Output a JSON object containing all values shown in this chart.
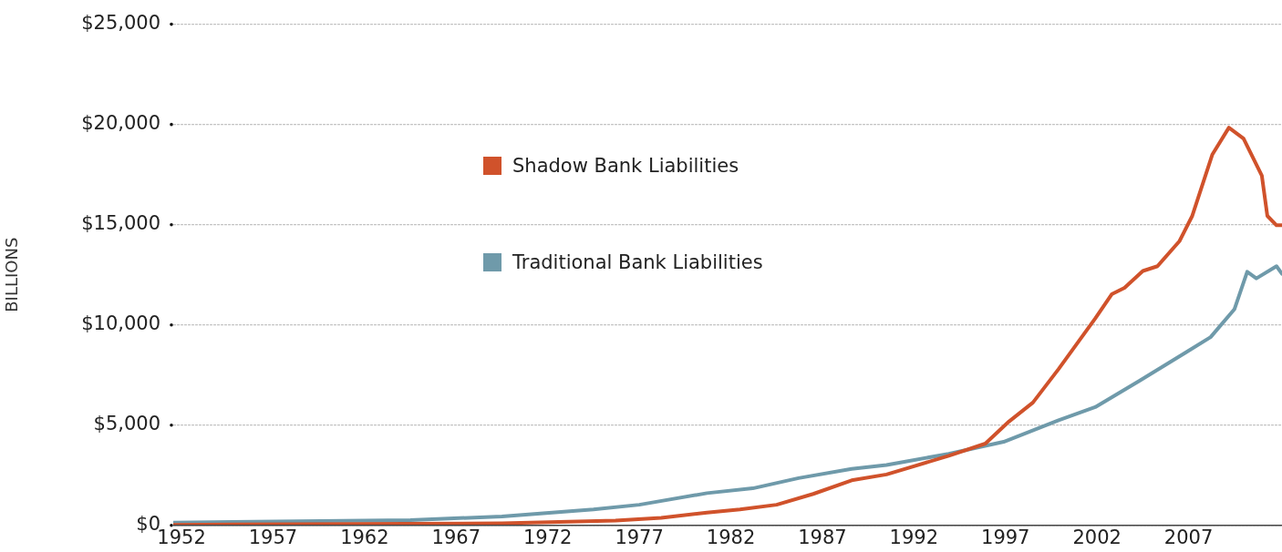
{
  "chart_data": {
    "type": "line",
    "ylabel": "BILLIONS",
    "xlim": [
      1951.55,
      2012.1
    ],
    "xticks": [
      1952,
      1957,
      1962,
      1967,
      1972,
      1977,
      1982,
      1987,
      1992,
      1997,
      2002,
      2007
    ],
    "ylim": [
      0,
      25000
    ],
    "yticks": [
      {
        "value": 0,
        "label": "$0"
      },
      {
        "value": 5000,
        "label": "$5,000"
      },
      {
        "value": 10000,
        "label": "$10,000"
      },
      {
        "value": 15000,
        "label": "$15,000"
      },
      {
        "value": 20000,
        "label": "$20,000"
      },
      {
        "value": 25000,
        "label": "$25,000"
      }
    ],
    "grid": "y",
    "legend": "top left",
    "marker": "none",
    "line_style": "solid",
    "series": [
      {
        "name": "Shadow Bank Liabilities",
        "color": "#d0522b",
        "x": [
          1951.55,
          1969.5,
          1975.7,
          1978.2,
          1980.7,
          1982.5,
          1984.5,
          1986.5,
          1988.6,
          1990.5,
          1993.9,
          1995.9,
          1997.2,
          1998.5,
          1999.9,
          2000.9,
          2001.9,
          2002.8,
          2003.5,
          2004.5,
          2005.3,
          2006.5,
          2007.2,
          2008.3,
          2009.2,
          2010.0,
          2011.0,
          2011.3,
          2011.8,
          2012.1
        ],
        "values": [
          30,
          100,
          240,
          380,
          640,
          800,
          1030,
          1570,
          2250,
          2540,
          3470,
          4080,
          5190,
          6130,
          7800,
          9060,
          10320,
          11530,
          11850,
          12690,
          12930,
          14180,
          15440,
          18510,
          19840,
          19300,
          17440,
          15440,
          14970,
          14970
        ]
      },
      {
        "name": "Traditional Bank Liabilities",
        "color": "#6f9aaa",
        "x": [
          1951.55,
          1964.5,
          1969.5,
          1974.5,
          1977,
          1980.7,
          1983.2,
          1985.7,
          1988.6,
          1990.5,
          1993.9,
          1996.9,
          1999.9,
          2001.9,
          2004.3,
          2006.8,
          2008.2,
          2009.5,
          2010.2,
          2010.7,
          2011.8,
          2012.1
        ],
        "values": [
          140,
          260,
          450,
          800,
          1030,
          1610,
          1850,
          2360,
          2820,
          3010,
          3570,
          4170,
          5240,
          5900,
          7200,
          8600,
          9390,
          10780,
          12650,
          12320,
          12930,
          12550
        ]
      }
    ]
  }
}
